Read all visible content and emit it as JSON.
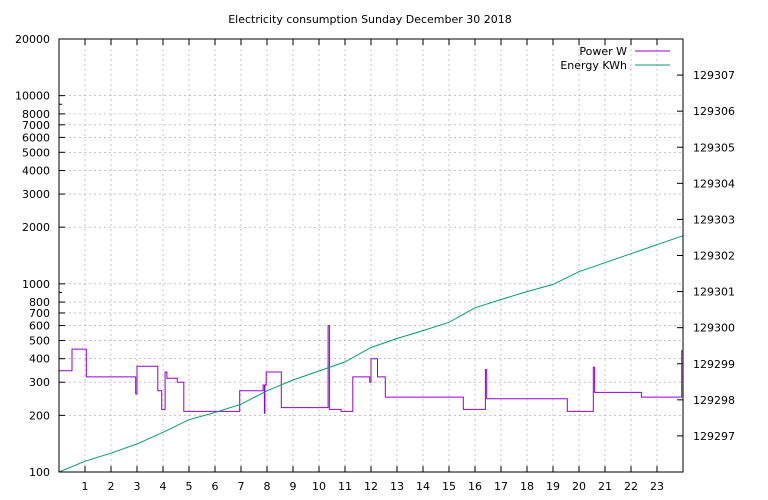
{
  "chart_data": {
    "type": "line",
    "title": "Electricity consumption Sunday December 30 2018",
    "xlabel": "",
    "ylabel": "",
    "y2label": "",
    "xlim": [
      0,
      24
    ],
    "x_ticks": [
      1,
      2,
      3,
      4,
      5,
      6,
      7,
      8,
      9,
      10,
      11,
      12,
      13,
      14,
      15,
      16,
      17,
      18,
      19,
      20,
      21,
      22,
      23
    ],
    "ylim": [
      100,
      20000
    ],
    "y_scale": "log",
    "y_ticks": [
      100,
      200,
      300,
      400,
      500,
      600,
      700,
      800,
      1000,
      2000,
      3000,
      4000,
      5000,
      6000,
      7000,
      8000,
      10000,
      20000
    ],
    "y2lim": [
      129296.0,
      129308.0
    ],
    "y2_ticks": [
      129297,
      129298,
      129299,
      129300,
      129301,
      129302,
      129303,
      129304,
      129305,
      129306,
      129307
    ],
    "grid": true,
    "legend_position": "top-right",
    "series": [
      {
        "name": "Power W",
        "color": "#9400d3",
        "axis": "left",
        "x": [
          0,
          0.5,
          0.5,
          1.05,
          1.05,
          2.95,
          2.95,
          3.0,
          3.0,
          3.8,
          3.8,
          3.95,
          3.95,
          4.08,
          4.08,
          4.15,
          4.15,
          4.55,
          4.55,
          4.8,
          4.8,
          4.85,
          4.85,
          6.95,
          6.95,
          7.85,
          7.85,
          7.9,
          7.9,
          7.92,
          7.92,
          7.97,
          7.97,
          8.55,
          8.55,
          10.35,
          10.35,
          10.4,
          10.4,
          10.85,
          10.85,
          11.3,
          11.3,
          11.95,
          11.95,
          12.0,
          12.0,
          12.25,
          12.25,
          12.55,
          12.55,
          14.75,
          14.75,
          15.55,
          15.55,
          16.4,
          16.4,
          16.45,
          16.45,
          18.7,
          18.7,
          19.55,
          19.55,
          20.55,
          20.55,
          20.6,
          20.6,
          22.4,
          22.4,
          23.95,
          23.95,
          24.0
        ],
        "values": [
          345,
          345,
          450,
          450,
          320,
          320,
          260,
          260,
          365,
          365,
          270,
          270,
          215,
          215,
          340,
          340,
          315,
          315,
          300,
          300,
          210,
          210,
          210,
          210,
          270,
          270,
          290,
          290,
          205,
          205,
          290,
          290,
          340,
          340,
          220,
          220,
          600,
          600,
          215,
          215,
          210,
          210,
          320,
          320,
          300,
          300,
          400,
          400,
          320,
          320,
          250,
          250,
          250,
          250,
          215,
          215,
          350,
          350,
          245,
          245,
          245,
          245,
          210,
          210,
          360,
          360,
          265,
          265,
          250,
          250,
          440,
          440
        ]
      },
      {
        "name": "Energy KWh",
        "color": "#009e73",
        "axis": "right",
        "x": [
          0,
          1,
          2,
          3,
          4,
          5,
          6,
          7,
          8,
          9,
          10,
          11,
          12,
          13,
          14,
          15,
          16,
          17,
          18,
          19,
          20,
          21,
          22,
          23,
          24
        ],
        "values": [
          129296.0,
          129296.3,
          129296.52,
          129296.78,
          129297.1,
          129297.45,
          129297.65,
          129297.88,
          129298.25,
          129298.55,
          129298.8,
          129299.05,
          129299.45,
          129299.7,
          129299.92,
          129300.15,
          129300.55,
          129300.78,
          129301.0,
          129301.2,
          129301.55,
          129301.8,
          129302.05,
          129302.3,
          129302.55
        ]
      }
    ]
  }
}
